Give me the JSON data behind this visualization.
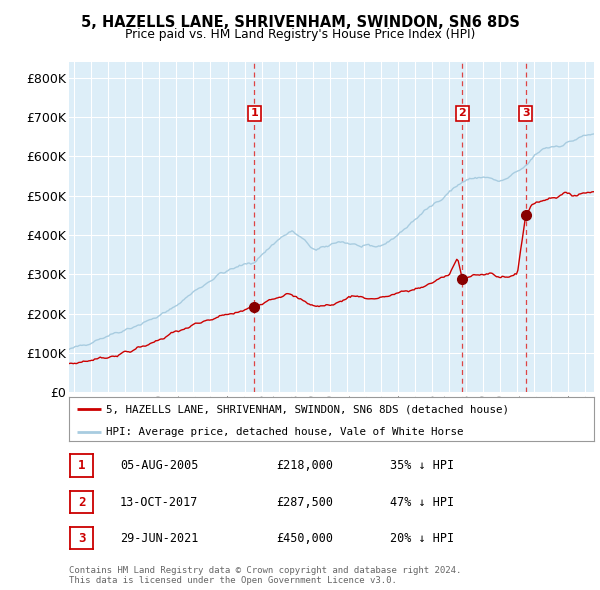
{
  "title": "5, HAZELLS LANE, SHRIVENHAM, SWINDON, SN6 8DS",
  "subtitle": "Price paid vs. HM Land Registry's House Price Index (HPI)",
  "ytick_vals": [
    0,
    100000,
    200000,
    300000,
    400000,
    500000,
    600000,
    700000,
    800000
  ],
  "ylim": [
    0,
    840000
  ],
  "xlim_start": 1994.7,
  "xlim_end": 2025.5,
  "xtick_years": [
    1995,
    1996,
    1997,
    1998,
    1999,
    2000,
    2001,
    2002,
    2003,
    2004,
    2005,
    2006,
    2007,
    2008,
    2009,
    2010,
    2011,
    2012,
    2013,
    2014,
    2015,
    2016,
    2017,
    2018,
    2019,
    2020,
    2021,
    2022,
    2023,
    2024,
    2025
  ],
  "sale1_x": 2005.58,
  "sale1_y": 218000,
  "sale1_label": "1",
  "sale2_x": 2017.78,
  "sale2_y": 287500,
  "sale2_label": "2",
  "sale3_x": 2021.49,
  "sale3_y": 450000,
  "sale3_label": "3",
  "hpi_color": "#a8cce0",
  "price_color": "#cc0000",
  "sale_dot_color": "#880000",
  "dashed_line_color": "#dd4444",
  "plot_bg": "#ddeef8",
  "grid_color": "#ffffff",
  "legend1_label": "5, HAZELLS LANE, SHRIVENHAM, SWINDON, SN6 8DS (detached house)",
  "legend2_label": "HPI: Average price, detached house, Vale of White Horse",
  "table_data": [
    {
      "num": "1",
      "date": "05-AUG-2005",
      "price": "£218,000",
      "pct": "35% ↓ HPI"
    },
    {
      "num": "2",
      "date": "13-OCT-2017",
      "price": "£287,500",
      "pct": "47% ↓ HPI"
    },
    {
      "num": "3",
      "date": "29-JUN-2021",
      "price": "£450,000",
      "pct": "20% ↓ HPI"
    }
  ],
  "footnote": "Contains HM Land Registry data © Crown copyright and database right 2024.\nThis data is licensed under the Open Government Licence v3.0."
}
